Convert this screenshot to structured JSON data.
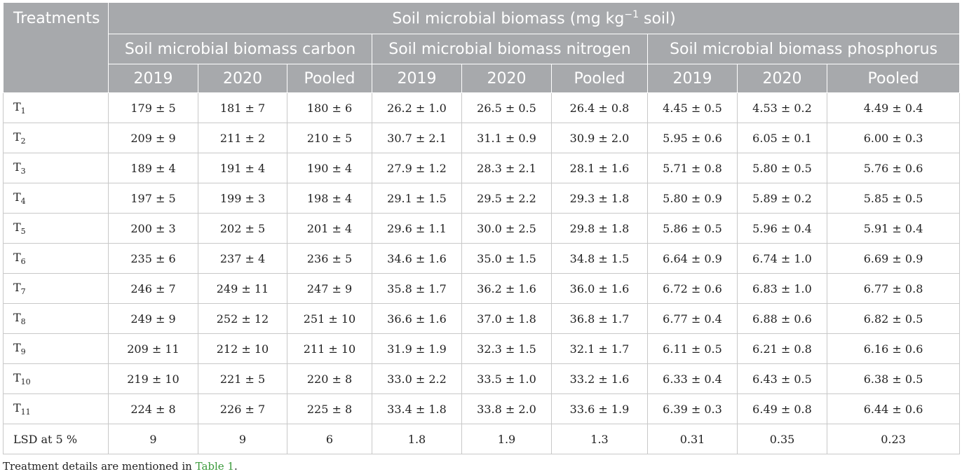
{
  "header": {
    "treatments": "Treatments",
    "title_prefix": "Soil microbial biomass (mg kg",
    "title_sup": "−1",
    "title_suffix": " soil)",
    "groups": [
      "Soil microbial biomass carbon",
      "Soil microbial biomass nitrogen",
      "Soil microbial biomass phosphorus"
    ],
    "years": [
      "2019",
      "2020",
      "Pooled",
      "2019",
      "2020",
      "Pooled",
      "2019",
      "2020",
      "Pooled"
    ]
  },
  "rows": [
    {
      "base": "T",
      "sub": "1",
      "cells": [
        "179 ± 5",
        "181 ± 7",
        "180 ± 6",
        "26.2 ± 1.0",
        "26.5 ± 0.5",
        "26.4 ± 0.8",
        "4.45 ± 0.5",
        "4.53 ± 0.2",
        "4.49 ± 0.4"
      ]
    },
    {
      "base": "T",
      "sub": "2",
      "cells": [
        "209 ± 9",
        "211 ± 2",
        "210 ± 5",
        "30.7 ± 2.1",
        "31.1 ± 0.9",
        "30.9 ± 2.0",
        "5.95 ± 0.6",
        "6.05 ± 0.1",
        "6.00 ± 0.3"
      ]
    },
    {
      "base": "T",
      "sub": "3",
      "cells": [
        "189 ± 4",
        "191 ± 4",
        "190 ± 4",
        "27.9 ± 1.2",
        "28.3 ± 2.1",
        "28.1 ± 1.6",
        "5.71 ± 0.8",
        "5.80 ± 0.5",
        "5.76 ± 0.6"
      ]
    },
    {
      "base": "T",
      "sub": "4",
      "cells": [
        "197 ± 5",
        "199 ± 3",
        "198 ± 4",
        "29.1 ± 1.5",
        "29.5 ± 2.2",
        "29.3 ± 1.8",
        "5.80 ± 0.9",
        "5.89 ± 0.2",
        "5.85 ± 0.5"
      ]
    },
    {
      "base": "T",
      "sub": "5",
      "cells": [
        "200 ± 3",
        "202 ± 5",
        "201 ± 4",
        "29.6 ± 1.1",
        "30.0 ± 2.5",
        "29.8 ± 1.8",
        "5.86 ± 0.5",
        "5.96 ± 0.4",
        "5.91 ± 0.4"
      ]
    },
    {
      "base": "T",
      "sub": "6",
      "cells": [
        "235 ± 6",
        "237 ± 4",
        "236 ± 5",
        "34.6 ± 1.6",
        "35.0 ± 1.5",
        "34.8 ± 1.5",
        "6.64 ± 0.9",
        "6.74 ± 1.0",
        "6.69 ± 0.9"
      ]
    },
    {
      "base": "T",
      "sub": "7",
      "cells": [
        "246 ± 7",
        "249 ± 11",
        "247 ± 9",
        "35.8 ± 1.7",
        "36.2 ± 1.6",
        "36.0 ± 1.6",
        "6.72 ± 0.6",
        "6.83 ± 1.0",
        "6.77 ± 0.8"
      ]
    },
    {
      "base": "T",
      "sub": "8",
      "cells": [
        "249 ± 9",
        "252 ± 12",
        "251 ± 10",
        "36.6 ± 1.6",
        "37.0 ± 1.8",
        "36.8 ± 1.7",
        "6.77 ± 0.4",
        "6.88 ± 0.6",
        "6.82 ± 0.5"
      ]
    },
    {
      "base": "T",
      "sub": "9",
      "cells": [
        "209 ± 11",
        "212 ± 10",
        "211 ± 10",
        "31.9 ± 1.9",
        "32.3 ± 1.5",
        "32.1 ± 1.7",
        "6.11 ± 0.5",
        "6.21 ± 0.8",
        "6.16 ± 0.6"
      ]
    },
    {
      "base": "T",
      "sub": "10",
      "cells": [
        "219 ± 10",
        "221 ± 5",
        "220 ± 8",
        "33.0 ± 2.2",
        "33.5 ± 1.0",
        "33.2 ± 1.6",
        "6.33 ± 0.4",
        "6.43 ± 0.5",
        "6.38 ± 0.5"
      ]
    },
    {
      "base": "T",
      "sub": "11",
      "cells": [
        "224 ± 8",
        "226 ± 7",
        "225 ± 8",
        "33.4 ± 1.8",
        "33.8 ± 2.0",
        "33.6 ± 1.9",
        "6.39 ± 0.3",
        "6.49 ± 0.8",
        "6.44 ± 0.6"
      ]
    },
    {
      "base": "LSD at 5 %",
      "sub": "",
      "cells": [
        "9",
        "9",
        "6",
        "1.8",
        "1.9",
        "1.3",
        "0.31",
        "0.35",
        "0.23"
      ]
    }
  ],
  "footnote": {
    "prefix": "Treatment details are mentioned in ",
    "link": "Table 1",
    "suffix": "."
  }
}
